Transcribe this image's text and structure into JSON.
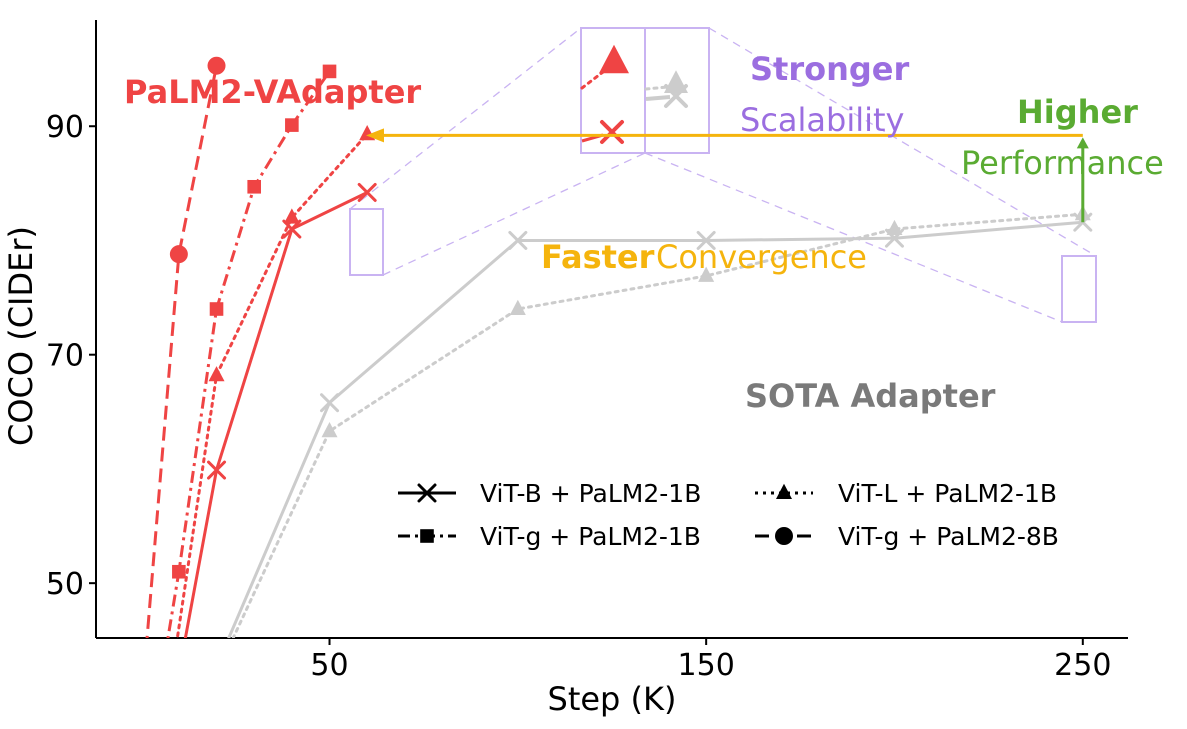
{
  "chart_data": {
    "type": "line",
    "xlabel": "Step (K)",
    "ylabel": "COCO (CIDEr)",
    "xlim": [
      -12,
      262
    ],
    "ylim": [
      45.2,
      99.3
    ],
    "x_ticks": [
      {
        "value": 50,
        "label": "50"
      },
      {
        "value": 150,
        "label": "150"
      },
      {
        "value": 250,
        "label": "250"
      }
    ],
    "y_ticks": [
      {
        "value": 50,
        "label": "50"
      },
      {
        "value": 70,
        "label": "70"
      },
      {
        "value": 90,
        "label": "90"
      }
    ],
    "grid": false,
    "legend": [
      {
        "label": "ViT-B + PaLM2-1B",
        "marker": "x",
        "dash": "solid"
      },
      {
        "label": "ViT-L + PaLM2-1B",
        "marker": "triangle",
        "dash": "dotted"
      },
      {
        "label": "ViT-g + PaLM2-1B",
        "marker": "square",
        "dash": "dashdot"
      },
      {
        "label": "ViT-g + PaLM2-8B",
        "marker": "circle",
        "dash": "dashed"
      }
    ],
    "series": [
      {
        "group": "palm2-vadapter",
        "config": "ViT-B + PaLM2-1B",
        "color": "#ef4444",
        "marker": "x",
        "dash": "solid",
        "points": [
          [
            6,
            35
          ],
          [
            20,
            59.9
          ],
          [
            40,
            81
          ],
          [
            60,
            84.2
          ]
        ]
      },
      {
        "group": "palm2-vadapter",
        "config": "ViT-L + PaLM2-1B",
        "color": "#ef4444",
        "marker": "triangle",
        "dash": "dotted",
        "points": [
          [
            5,
            35
          ],
          [
            20,
            68.2
          ],
          [
            40,
            82
          ],
          [
            60,
            89.3
          ]
        ]
      },
      {
        "group": "palm2-vadapter",
        "config": "ViT-g + PaLM2-1B",
        "color": "#ef4444",
        "marker": "square",
        "dash": "dashdot",
        "points": [
          [
            2,
            35
          ],
          [
            10,
            51
          ],
          [
            20,
            74
          ],
          [
            30,
            84.7
          ],
          [
            40,
            90.1
          ],
          [
            50,
            94.8
          ]
        ]
      },
      {
        "group": "palm2-vadapter",
        "config": "ViT-g + PaLM2-8B",
        "color": "#ef4444",
        "marker": "circle",
        "dash": "dashed",
        "points": [
          [
            -1,
            35
          ],
          [
            10,
            78.8
          ],
          [
            20,
            95.3
          ]
        ]
      },
      {
        "group": "sota-adapter",
        "config": "ViT-B + PaLM2-1B",
        "color": "#cccccc",
        "marker": "x",
        "dash": "solid",
        "points": [
          [
            10,
            35
          ],
          [
            50,
            65.8
          ],
          [
            100,
            80
          ],
          [
            150,
            80
          ],
          [
            200,
            80.2
          ],
          [
            250,
            81.6
          ]
        ]
      },
      {
        "group": "sota-adapter",
        "config": "ViT-L + PaLM2-1B",
        "color": "#cccccc",
        "marker": "triangle",
        "dash": "dotted",
        "points": [
          [
            10,
            35
          ],
          [
            50,
            63.3
          ],
          [
            100,
            74
          ],
          [
            150,
            76.9
          ],
          [
            200,
            81
          ],
          [
            250,
            82.3
          ]
        ]
      }
    ],
    "annotations": {
      "palm2_title": "PaLM2-VAdapter",
      "sota_title": "SOTA Adapter",
      "stronger": "Stronger",
      "scalability": "Scalability",
      "higher": "Higher",
      "performance": "Performance",
      "faster": "Faster",
      "convergence": "Convergence"
    },
    "colors": {
      "palm2": "#ef4444",
      "sota_line": "#cccccc",
      "sota_text": "#7a7a7a",
      "faster": "#f5b40d",
      "higher": "#5aab32",
      "stronger": "#9b6ee0",
      "zoom_box": "#c9b3f2"
    }
  }
}
